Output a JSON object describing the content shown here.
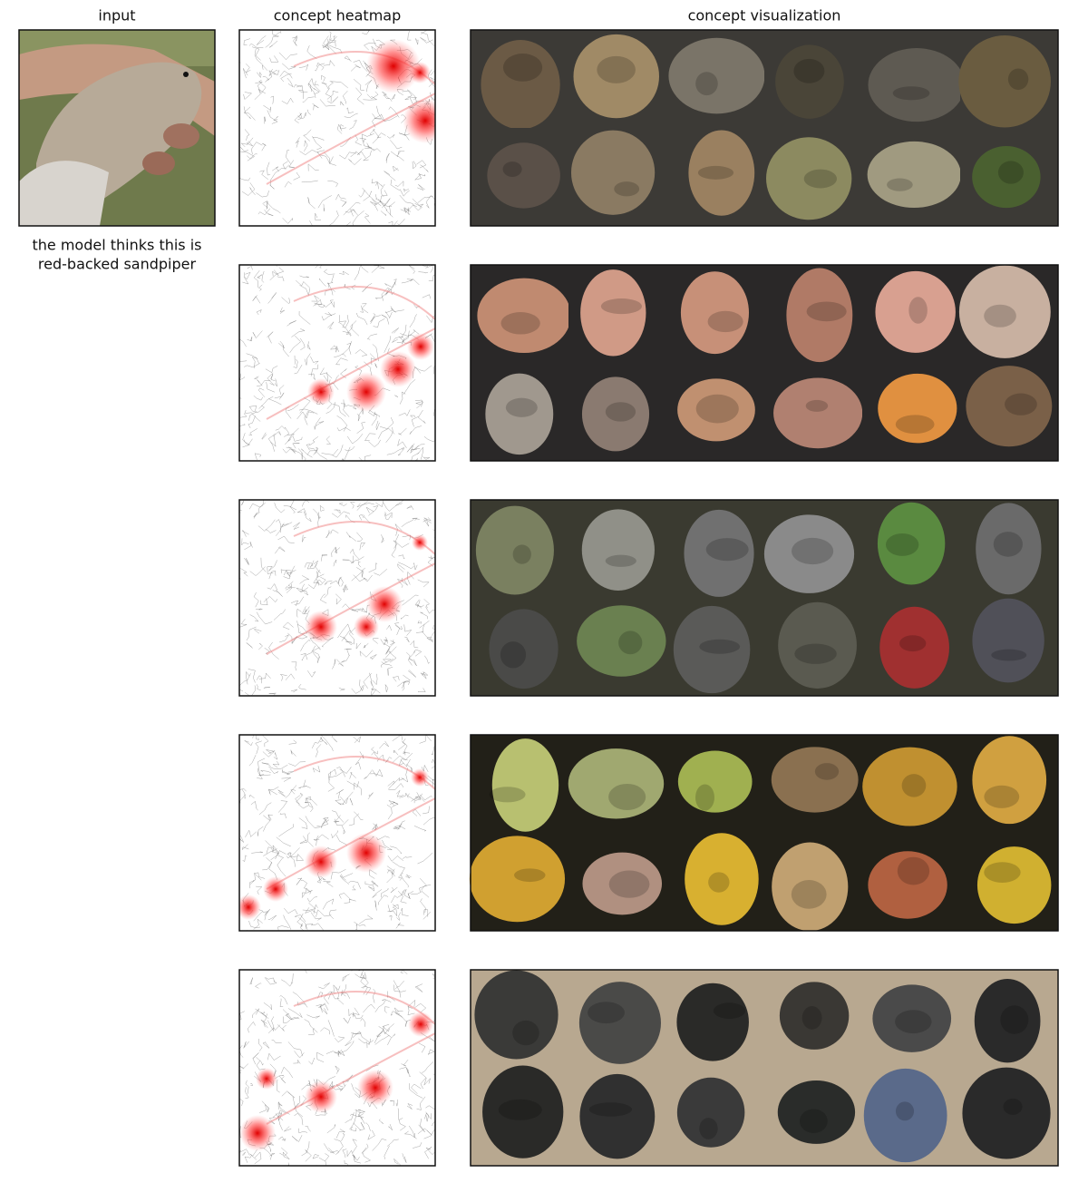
{
  "header": {
    "input": "input",
    "heatmap": "concept heatmap",
    "visualization": "concept visualization"
  },
  "caption": {
    "lines": [
      "the model thinks this is",
      "red-backed sandpiper"
    ]
  }
}
